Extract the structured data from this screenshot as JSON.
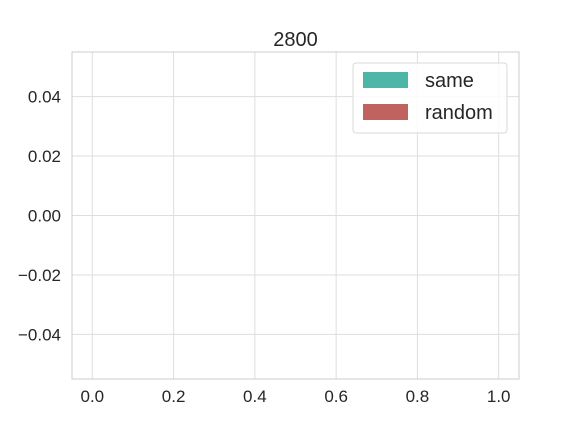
{
  "chart_data": {
    "type": "bar",
    "title": "2800",
    "xlabel": "",
    "ylabel": "",
    "xlim": [
      -0.05,
      1.05
    ],
    "ylim": [
      -0.055,
      0.055
    ],
    "x_ticks": [
      "0.0",
      "0.2",
      "0.4",
      "0.6",
      "0.8",
      "1.0"
    ],
    "x_tick_values": [
      0.0,
      0.2,
      0.4,
      0.6,
      0.8,
      1.0
    ],
    "y_ticks": [
      "0.04",
      "0.02",
      "0.00",
      "−0.02",
      "−0.04"
    ],
    "y_tick_values": [
      0.04,
      0.02,
      0.0,
      -0.02,
      -0.04
    ],
    "grid": true,
    "legend_position": "upper right",
    "series": [
      {
        "name": "same",
        "color": "#4db6a6",
        "values": []
      },
      {
        "name": "random",
        "color": "#c0625f",
        "values": []
      }
    ]
  }
}
